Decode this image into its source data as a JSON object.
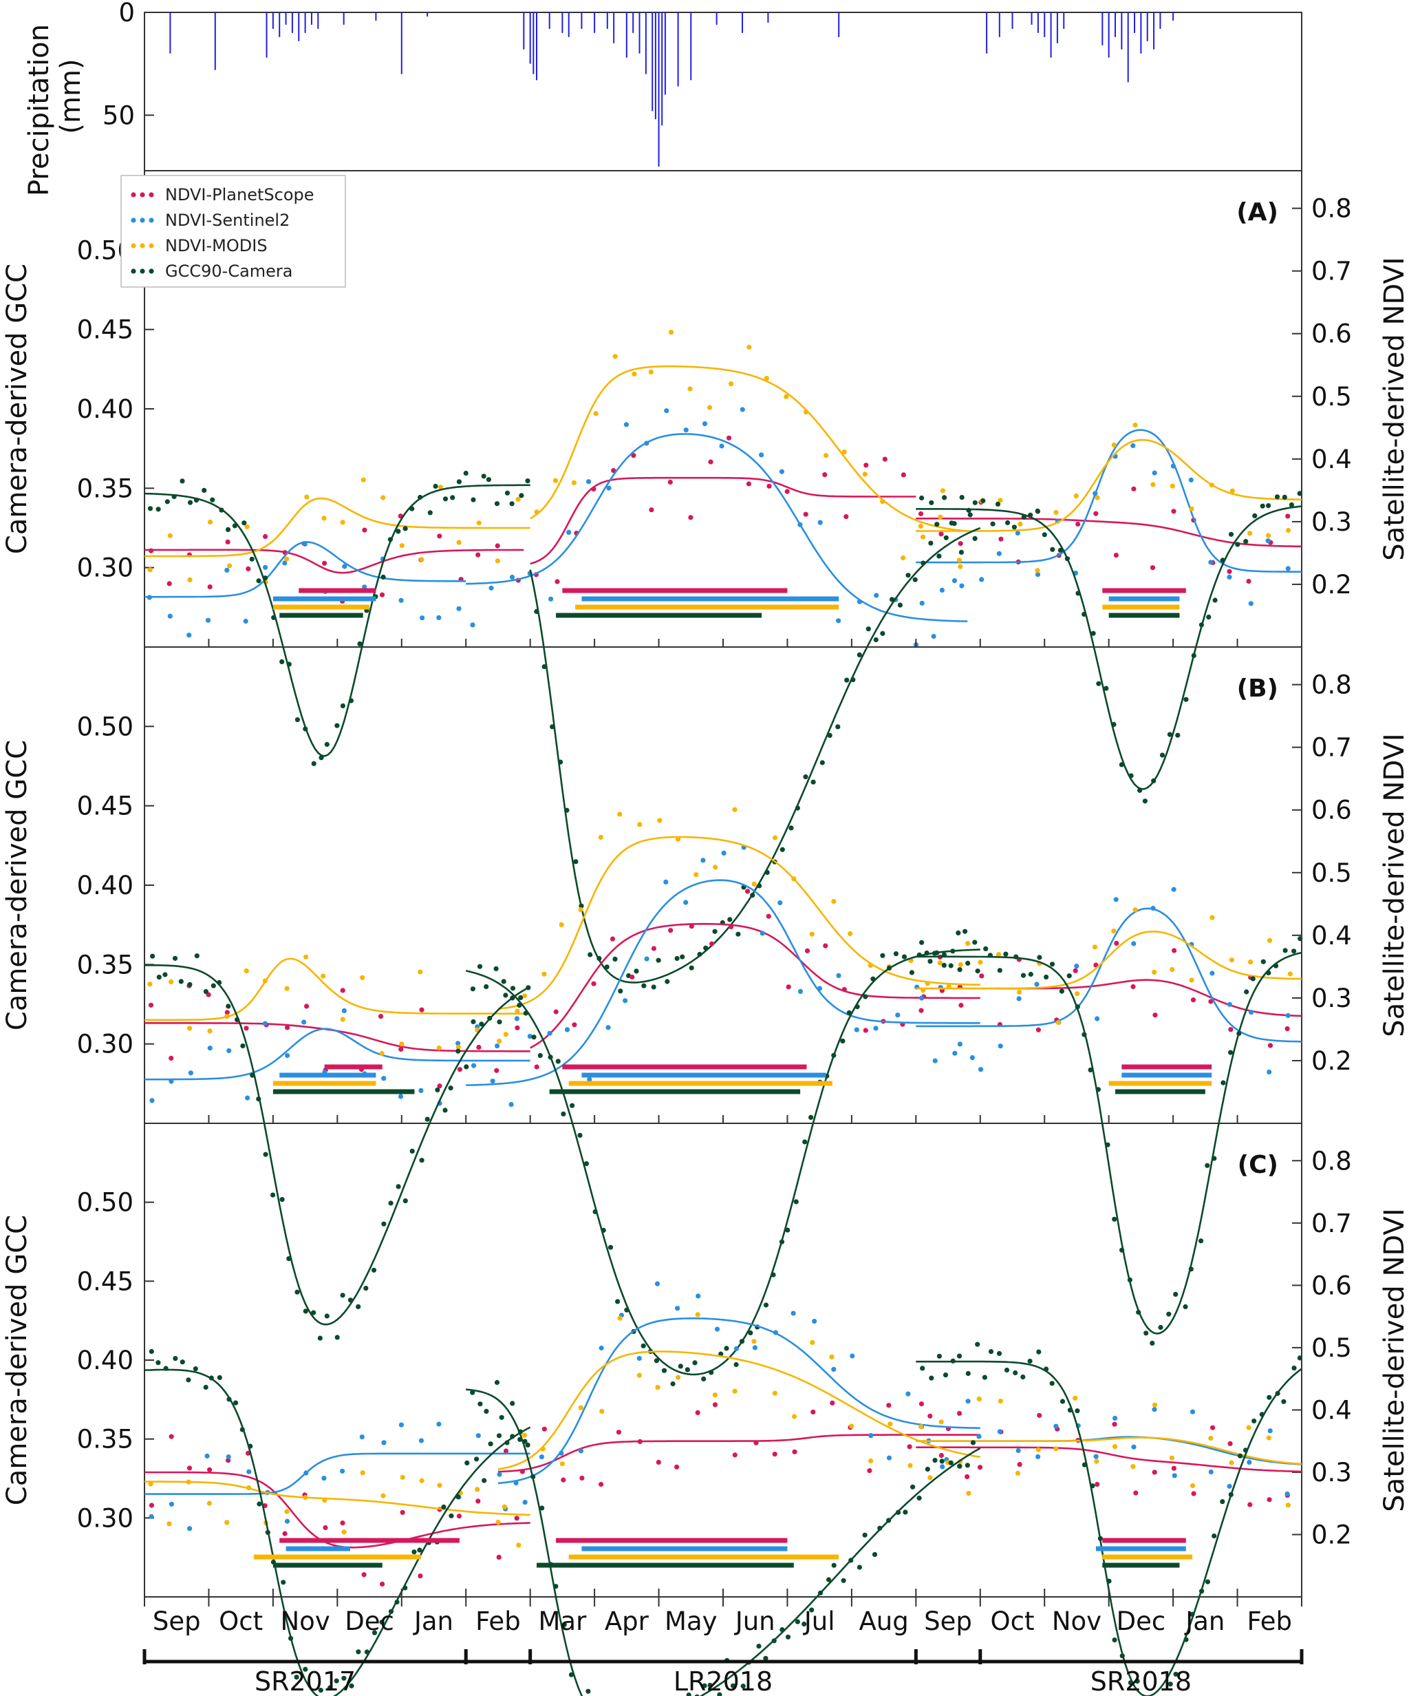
{
  "colors": {
    "planet": "#d6185c",
    "sentinel": "#2a8fe0",
    "modis": "#f7b500",
    "gcc": "#0b4a2c",
    "precip": "#1f1fe6"
  },
  "chart_data": {
    "type": "line",
    "time_axis": {
      "unit": "month index (0 = 1 Sep 2017)",
      "range": [
        0,
        18
      ],
      "month_labels": [
        "Sep",
        "Oct",
        "Nov",
        "Dec",
        "Jan",
        "Feb",
        "Mar",
        "Apr",
        "May",
        "Jun",
        "Jul",
        "Aug",
        "Sep",
        "Oct",
        "Nov",
        "Dec",
        "Jan",
        "Feb"
      ],
      "seasons": [
        {
          "label": "SR2017",
          "start": 0,
          "end": 5
        },
        {
          "label": "LR2018",
          "start": 6,
          "end": 12
        },
        {
          "label": "SR2018",
          "start": 13,
          "end": 18
        }
      ]
    },
    "precipitation": {
      "ylabel": "Precipitation\n(mm)",
      "yticks": [
        0,
        50
      ],
      "ylim_inverted": [
        0,
        75
      ],
      "events": [
        [
          0.4,
          20
        ],
        [
          1.1,
          28
        ],
        [
          1.9,
          22
        ],
        [
          2.0,
          8
        ],
        [
          2.1,
          12
        ],
        [
          2.2,
          6
        ],
        [
          2.3,
          10
        ],
        [
          2.4,
          14
        ],
        [
          2.5,
          10
        ],
        [
          2.6,
          6
        ],
        [
          2.7,
          8
        ],
        [
          3.1,
          6
        ],
        [
          3.6,
          4
        ],
        [
          4.0,
          30
        ],
        [
          4.4,
          2
        ],
        [
          5.9,
          18
        ],
        [
          6.0,
          25
        ],
        [
          6.05,
          30
        ],
        [
          6.1,
          33
        ],
        [
          6.3,
          8
        ],
        [
          6.5,
          10
        ],
        [
          6.6,
          12
        ],
        [
          6.8,
          8
        ],
        [
          7.0,
          10
        ],
        [
          7.2,
          8
        ],
        [
          7.3,
          15
        ],
        [
          7.5,
          22
        ],
        [
          7.6,
          10
        ],
        [
          7.7,
          20
        ],
        [
          7.8,
          30
        ],
        [
          7.9,
          48
        ],
        [
          7.95,
          52
        ],
        [
          8.0,
          75
        ],
        [
          8.05,
          55
        ],
        [
          8.1,
          40
        ],
        [
          8.3,
          36
        ],
        [
          8.5,
          33
        ],
        [
          8.9,
          6
        ],
        [
          9.3,
          10
        ],
        [
          9.7,
          5
        ],
        [
          10.8,
          12
        ],
        [
          13.1,
          20
        ],
        [
          13.3,
          12
        ],
        [
          13.5,
          8
        ],
        [
          13.8,
          6
        ],
        [
          13.9,
          10
        ],
        [
          14.0,
          12
        ],
        [
          14.1,
          22
        ],
        [
          14.2,
          15
        ],
        [
          14.3,
          8
        ],
        [
          14.9,
          16
        ],
        [
          15.0,
          22
        ],
        [
          15.1,
          12
        ],
        [
          15.2,
          18
        ],
        [
          15.3,
          34
        ],
        [
          15.4,
          10
        ],
        [
          15.5,
          20
        ],
        [
          15.6,
          14
        ],
        [
          15.7,
          18
        ],
        [
          15.8,
          8
        ],
        [
          16.0,
          4
        ]
      ]
    },
    "series": [
      "NDVI-PlanetScope",
      "NDVI-Sentinel2",
      "NDVI-MODIS",
      "GCC90-Camera"
    ],
    "left_axis": {
      "label": "Camera-derived GCC",
      "range": [
        0.25,
        0.55
      ],
      "ticks": [
        0.3,
        0.35,
        0.4,
        0.45,
        0.5
      ]
    },
    "right_axis": {
      "label": "Satellite-derived NDVI",
      "range": [
        0.1,
        0.86
      ],
      "ticks": [
        0.2,
        0.3,
        0.4,
        0.5,
        0.6,
        0.7,
        0.8
      ]
    },
    "panels": [
      {
        "label": "(A)",
        "curves": {
          "planet": [
            [
              0.7,
              0.3
            ],
            [
              5.6,
              0.3
            ],
            [
              5.6,
              0.3
            ]
          ],
          "sentinel": [],
          "modis": [],
          "gcc": []
        },
        "fits": {
          "planet": [
            {
              "x0": 0,
              "x1": 5.9,
              "b": 0.255,
              "a": 0.19,
              "t1": 2.7,
              "w1": 0.22,
              "t2": 3.4,
              "w2": 0.35
            },
            {
              "x0": 6,
              "x1": 12,
              "b": 0.228,
              "a": 0.37,
              "t1": 6.6,
              "w1": 0.18,
              "t2": 10,
              "w2": 0.18,
              "b2": 0.34
            },
            {
              "x0": 12,
              "x1": 18,
              "b": 0.305,
              "a": 0.3,
              "t1": 14.5,
              "w1": 0.3,
              "t2": 16.3,
              "w2": 0.38,
              "b2": 0.26
            }
          ],
          "sentinel": [
            {
              "x0": 0,
              "x1": 5,
              "b": 0.18,
              "a": 0.3,
              "t1": 2.1,
              "w1": 0.2,
              "t2": 2.9,
              "w2": 0.28,
              "b2": 0.205
            },
            {
              "x0": 5,
              "x1": 12.8,
              "b": 0.2,
              "a": 0.45,
              "t1": 7.0,
              "w1": 0.35,
              "t2": 10.2,
              "w2": 0.45,
              "b2": 0.14
            },
            {
              "x0": 12,
              "x1": 18,
              "b": 0.235,
              "a": 0.46,
              "t1": 14.8,
              "w1": 0.2,
              "t2": 16.2,
              "w2": 0.2,
              "b2": 0.22
            }
          ],
          "modis": [
            {
              "x0": 0,
              "x1": 6,
              "b": 0.245,
              "a": 0.38,
              "t1": 2.3,
              "w1": 0.22,
              "t2": 3.0,
              "w2": 0.3,
              "b2": 0.29
            },
            {
              "x0": 6,
              "x1": 12.8,
              "b": 0.29,
              "a": 0.55,
              "t1": 6.7,
              "w1": 0.25,
              "t2": 10.8,
              "w2": 0.5,
              "b2": 0.28
            },
            {
              "x0": 12,
              "x1": 18,
              "b": 0.285,
              "a": 0.45,
              "t1": 14.8,
              "w1": 0.25,
              "t2": 16.2,
              "w2": 0.3,
              "b2": 0.335
            }
          ],
          "gcc": [
            {
              "x0": 0,
              "x1": 6,
              "b": 0.347,
              "a": 0.09,
              "t1": 2.3,
              "w1": 0.35,
              "t2": 3.3,
              "w2": 0.3,
              "b2": 0.352
            },
            {
              "x0": 6,
              "x1": 13,
              "b": 0.352,
              "a": 0.028,
              "t1": 6.4,
              "w1": 0.25,
              "t2": 10.5,
              "w2": 0.8,
              "b2": 0.338
            },
            {
              "x0": 12,
              "x1": 18,
              "b": 0.337,
              "a": 0.105,
              "t1": 14.9,
              "w1": 0.3,
              "t2": 16.2,
              "w2": 0.35,
              "b2": 0.34
            }
          ]
        },
        "bars": {
          "planet": [
            [
              2.4,
              3.6
            ],
            [
              6.5,
              10.0
            ],
            [
              14.9,
              16.2
            ]
          ],
          "sentinel": [
            [
              2.0,
              3.6
            ],
            [
              6.8,
              10.8
            ],
            [
              15.0,
              16.1
            ]
          ],
          "modis": [
            [
              2.0,
              3.5
            ],
            [
              6.7,
              10.8
            ],
            [
              14.9,
              16.1
            ]
          ],
          "gcc": [
            [
              2.1,
              3.4
            ],
            [
              6.4,
              9.6
            ],
            [
              15.0,
              16.1
            ]
          ]
        }
      },
      {
        "label": "(B)",
        "fits": {
          "planet": [
            {
              "x0": 0,
              "x1": 6,
              "b": 0.26,
              "a": 0.25,
              "t1": 2.5,
              "w1": 0.3,
              "t2": 3.6,
              "w2": 0.3,
              "b2": 0.215
            },
            {
              "x0": 6,
              "x1": 13,
              "b": 0.2,
              "a": 0.42,
              "t1": 6.8,
              "w1": 0.35,
              "t2": 10.2,
              "w2": 0.3,
              "b2": 0.3
            },
            {
              "x0": 12,
              "x1": 18,
              "b": 0.315,
              "a": 0.34,
              "t1": 15.2,
              "w1": 0.3,
              "t2": 16.5,
              "w2": 0.38,
              "b2": 0.27
            }
          ],
          "sentinel": [
            {
              "x0": 0,
              "x1": 6,
              "b": 0.17,
              "a": 0.28,
              "t1": 2.3,
              "w1": 0.28,
              "t2": 3.2,
              "w2": 0.25,
              "b2": 0.2
            },
            {
              "x0": 5,
              "x1": 13,
              "b": 0.16,
              "a": 0.5,
              "t1": 7.4,
              "w1": 0.4,
              "t2": 10.1,
              "w2": 0.3,
              "b2": 0.26
            },
            {
              "x0": 12,
              "x1": 18,
              "b": 0.255,
              "a": 0.46,
              "t1": 14.9,
              "w1": 0.22,
              "t2": 16.4,
              "w2": 0.25,
              "b2": 0.23
            }
          ],
          "modis": [
            {
              "x0": 0,
              "x1": 6,
              "b": 0.265,
              "a": 0.42,
              "t1": 1.9,
              "w1": 0.2,
              "t2": 2.6,
              "w2": 0.3,
              "b2": 0.275
            },
            {
              "x0": 5.5,
              "x1": 13,
              "b": 0.28,
              "a": 0.56,
              "t1": 6.8,
              "w1": 0.28,
              "t2": 10.5,
              "w2": 0.45,
              "b2": 0.32
            },
            {
              "x0": 12,
              "x1": 18,
              "b": 0.315,
              "a": 0.42,
              "t1": 15.0,
              "w1": 0.25,
              "t2": 16.4,
              "w2": 0.3,
              "b2": 0.33
            }
          ],
          "gcc": [
            {
              "x0": 0,
              "x1": 6,
              "b": 0.349,
              "a": 0.06,
              "t1": 2.0,
              "w1": 0.3,
              "t2": 4.0,
              "w2": 0.7,
              "b2": 0.352
            },
            {
              "x0": 5,
              "x1": 13,
              "b": 0.35,
              "a": 0.078,
              "t1": 6.9,
              "w1": 0.45,
              "t2": 10.2,
              "w2": 0.45,
              "b2": 0.36
            },
            {
              "x0": 12,
              "x1": 18,
              "b": 0.355,
              "a": 0.09,
              "t1": 15.0,
              "w1": 0.25,
              "t2": 16.6,
              "w2": 0.3,
              "b2": 0.36
            }
          ]
        },
        "bars": {
          "planet": [
            [
              2.8,
              3.7
            ],
            [
              6.5,
              10.3
            ],
            [
              15.2,
              16.6
            ]
          ],
          "sentinel": [
            [
              2.1,
              3.6
            ],
            [
              6.8,
              10.6
            ],
            [
              15.2,
              16.6
            ]
          ],
          "modis": [
            [
              2.0,
              3.6
            ],
            [
              6.6,
              10.7
            ],
            [
              15.0,
              16.6
            ]
          ],
          "gcc": [
            [
              2.0,
              4.2
            ],
            [
              6.3,
              10.2
            ],
            [
              15.1,
              16.5
            ]
          ]
        }
      },
      {
        "label": "(C)",
        "fits": {
          "planet": [
            {
              "x0": 0,
              "x1": 6,
              "b": 0.3,
              "a": 0.17,
              "t1": 2.3,
              "w1": 0.25,
              "t2": 4.2,
              "w2": 0.5,
              "b2": 0.22
            },
            {
              "x0": 5.5,
              "x1": 13,
              "b": 0.3,
              "a": 0.35,
              "t1": 6.5,
              "w1": 0.25,
              "t2": 10.3,
              "w2": 0.2,
              "b2": 0.36
            },
            {
              "x0": 12,
              "x1": 18,
              "b": 0.34,
              "a": 0.32,
              "t1": 15.0,
              "w1": 0.25,
              "t2": 16.6,
              "w2": 0.5,
              "b2": 0.3
            }
          ],
          "sentinel": [
            {
              "x0": 0,
              "x1": 6,
              "b": 0.265,
              "a": 0.32,
              "t1": 2.45,
              "w1": 0.15,
              "t2": 2.85,
              "w2": 0.15,
              "b2": 0.33
            },
            {
              "x0": 5.5,
              "x1": 13,
              "b": 0.28,
              "a": 0.55,
              "t1": 6.9,
              "w1": 0.3,
              "t2": 10.6,
              "w2": 0.45,
              "b2": 0.37
            },
            {
              "x0": 12,
              "x1": 18,
              "b": 0.35,
              "a": 0.36,
              "t1": 14.9,
              "w1": 0.2,
              "t2": 16.7,
              "w2": 0.45,
              "b2": 0.31
            }
          ],
          "modis": [
            {
              "x0": 0,
              "x1": 6,
              "b": 0.285,
              "a": 0.26,
              "t1": 1.7,
              "w1": 0.25,
              "t2": 4.3,
              "w2": 0.6,
              "b2": 0.23
            },
            {
              "x0": 5.5,
              "x1": 13,
              "b": 0.3,
              "a": 0.5,
              "t1": 6.6,
              "w1": 0.3,
              "t2": 11.0,
              "w2": 0.8,
              "b2": 0.31
            },
            {
              "x0": 12,
              "x1": 18,
              "b": 0.35,
              "a": 0.36,
              "t1": 15.1,
              "w1": 0.25,
              "t2": 16.8,
              "w2": 0.45,
              "b2": 0.31
            }
          ],
          "gcc": [
            {
              "x0": 0,
              "x1": 6,
              "b": 0.392,
              "a": 0.115,
              "t1": 2.0,
              "w1": 0.3,
              "t2": 3.9,
              "w2": 0.8,
              "b2": 0.375
            },
            {
              "x0": 5,
              "x1": 13,
              "b": 0.38,
              "a": 0.15,
              "t1": 6.3,
              "w1": 0.25,
              "t2": 10.8,
              "w2": 1.3,
              "b2": 0.38
            },
            {
              "x0": 12,
              "x1": 18,
              "b": 0.399,
              "a": 0.14,
              "t1": 14.9,
              "w1": 0.25,
              "t2": 16.6,
              "w2": 0.5,
              "b2": 0.41
            }
          ]
        },
        "bars": {
          "planet": [
            [
              2.1,
              4.9
            ],
            [
              6.4,
              10.0
            ],
            [
              14.9,
              16.2
            ]
          ],
          "sentinel": [
            [
              2.2,
              3.2
            ],
            [
              6.8,
              10.0
            ],
            [
              14.8,
              16.2
            ]
          ],
          "modis": [
            [
              1.7,
              4.3
            ],
            [
              6.6,
              10.8
            ],
            [
              14.9,
              16.3
            ]
          ],
          "gcc": [
            [
              2.0,
              3.7
            ],
            [
              6.1,
              10.1
            ],
            [
              14.9,
              16.1
            ]
          ]
        }
      }
    ],
    "legend": [
      {
        "key": "planet",
        "label": "NDVI-PlanetScope"
      },
      {
        "key": "sentinel",
        "label": "NDVI-Sentinel2"
      },
      {
        "key": "modis",
        "label": "NDVI-MODIS"
      },
      {
        "key": "gcc",
        "label": "GCC90-Camera"
      }
    ]
  }
}
